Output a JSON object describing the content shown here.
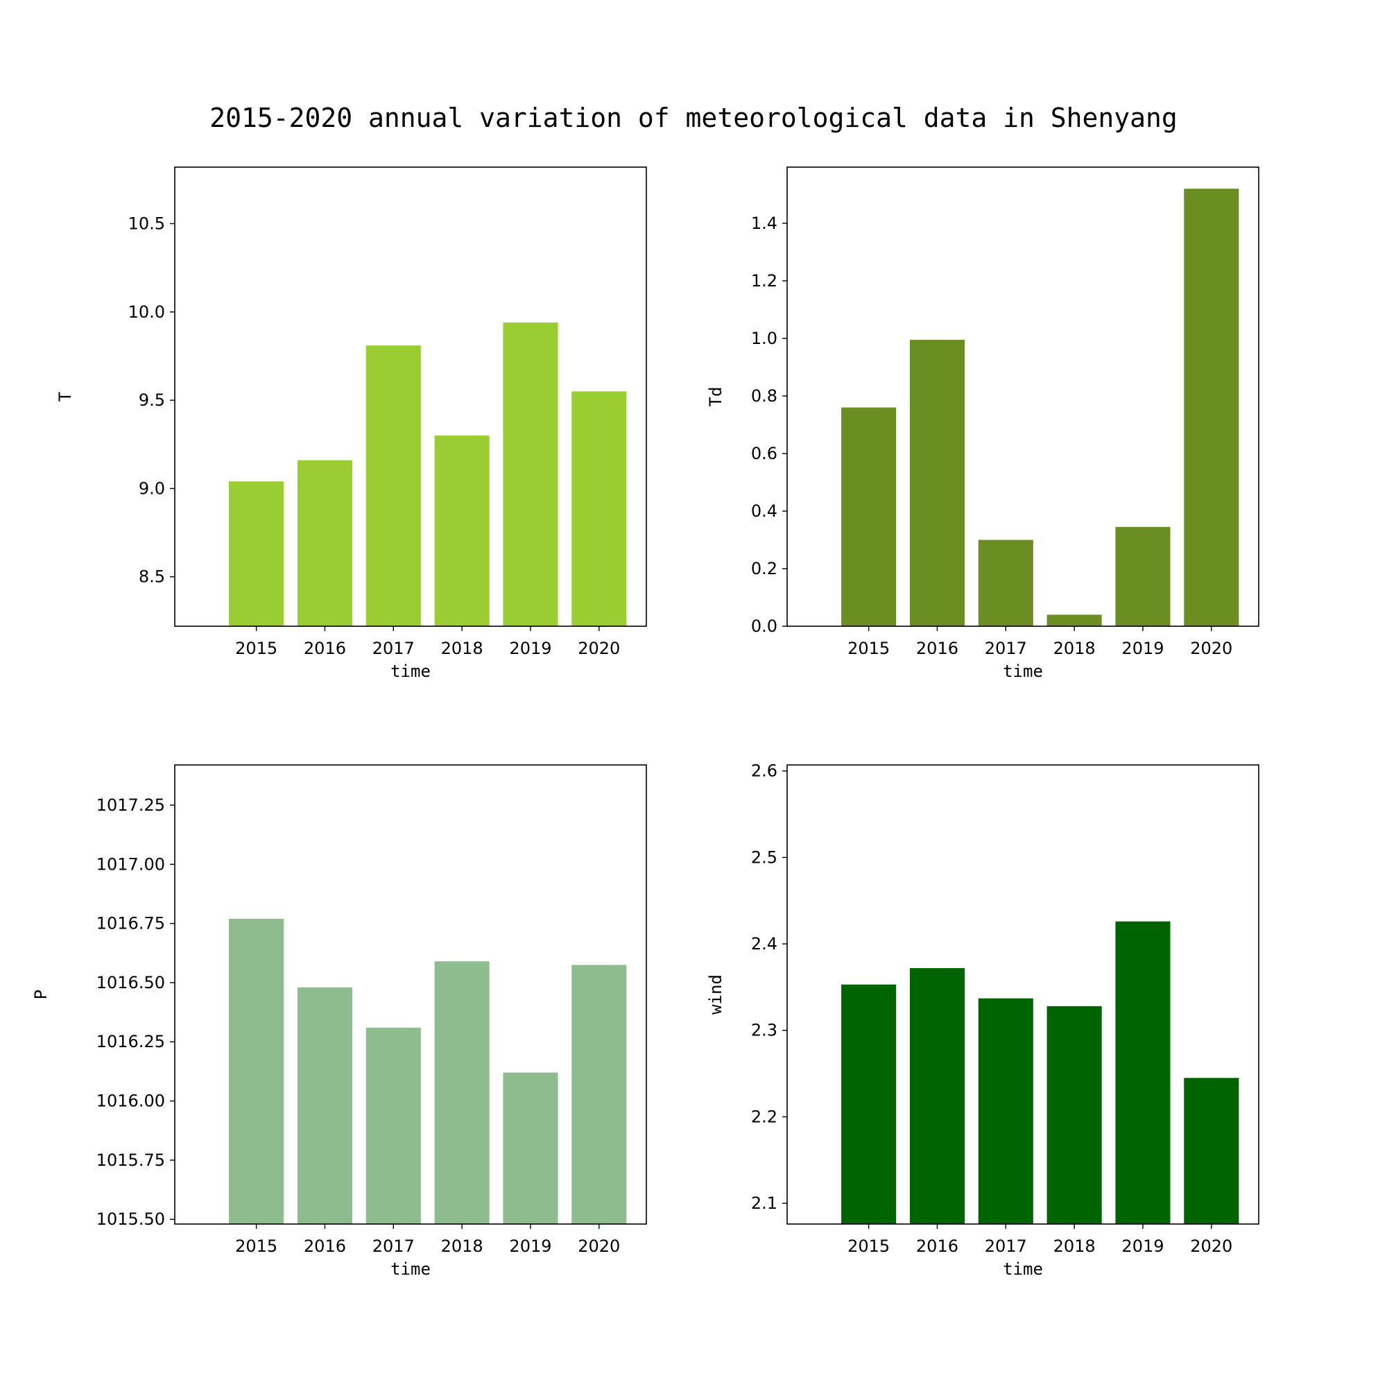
{
  "title": "2015-2020 annual variation of meteorological data in Shenyang",
  "chart_data": [
    {
      "type": "bar",
      "categories": [
        "2015",
        "2016",
        "2017",
        "2018",
        "2019",
        "2020"
      ],
      "values": [
        9.04,
        9.16,
        9.81,
        9.3,
        9.94,
        9.55
      ],
      "xlabel": "time",
      "ylabel": "T",
      "ylim": [
        8.22,
        10.82
      ],
      "yticks": [
        8.5,
        9.0,
        9.5,
        10.0,
        10.5
      ],
      "ytick_labels": [
        "8.5",
        "9.0",
        "9.5",
        "10.0",
        "10.5"
      ],
      "color": "#9acd32"
    },
    {
      "type": "bar",
      "categories": [
        "2015",
        "2016",
        "2017",
        "2018",
        "2019",
        "2020"
      ],
      "values": [
        0.76,
        0.995,
        0.3,
        0.04,
        0.345,
        1.52
      ],
      "xlabel": "time",
      "ylabel": "Td",
      "ylim": [
        0.0,
        1.595
      ],
      "yticks": [
        0.0,
        0.2,
        0.4,
        0.6,
        0.8,
        1.0,
        1.2,
        1.4
      ],
      "ytick_labels": [
        "0.0",
        "0.2",
        "0.4",
        "0.6",
        "0.8",
        "1.0",
        "1.2",
        "1.4"
      ],
      "color": "#6b8e23"
    },
    {
      "type": "bar",
      "categories": [
        "2015",
        "2016",
        "2017",
        "2018",
        "2019",
        "2020"
      ],
      "values": [
        1016.77,
        1016.48,
        1016.31,
        1016.59,
        1016.12,
        1016.575
      ],
      "xlabel": "time",
      "ylabel": "P",
      "ylim": [
        1015.48,
        1017.42
      ],
      "yticks": [
        1015.5,
        1015.75,
        1016.0,
        1016.25,
        1016.5,
        1016.75,
        1017.0,
        1017.25
      ],
      "ytick_labels": [
        "1015.50",
        "1015.75",
        "1016.00",
        "1016.25",
        "1016.50",
        "1016.75",
        "1017.00",
        "1017.25"
      ],
      "color": "#8fbc8f"
    },
    {
      "type": "bar",
      "categories": [
        "2015",
        "2016",
        "2017",
        "2018",
        "2019",
        "2020"
      ],
      "values": [
        2.353,
        2.372,
        2.337,
        2.328,
        2.426,
        2.245
      ],
      "xlabel": "time",
      "ylabel": "wind",
      "ylim": [
        2.076,
        2.607
      ],
      "yticks": [
        2.1,
        2.2,
        2.3,
        2.4,
        2.5,
        2.6
      ],
      "ytick_labels": [
        "2.1",
        "2.2",
        "2.3",
        "2.4",
        "2.5",
        "2.6"
      ],
      "color": "#006400"
    }
  ]
}
